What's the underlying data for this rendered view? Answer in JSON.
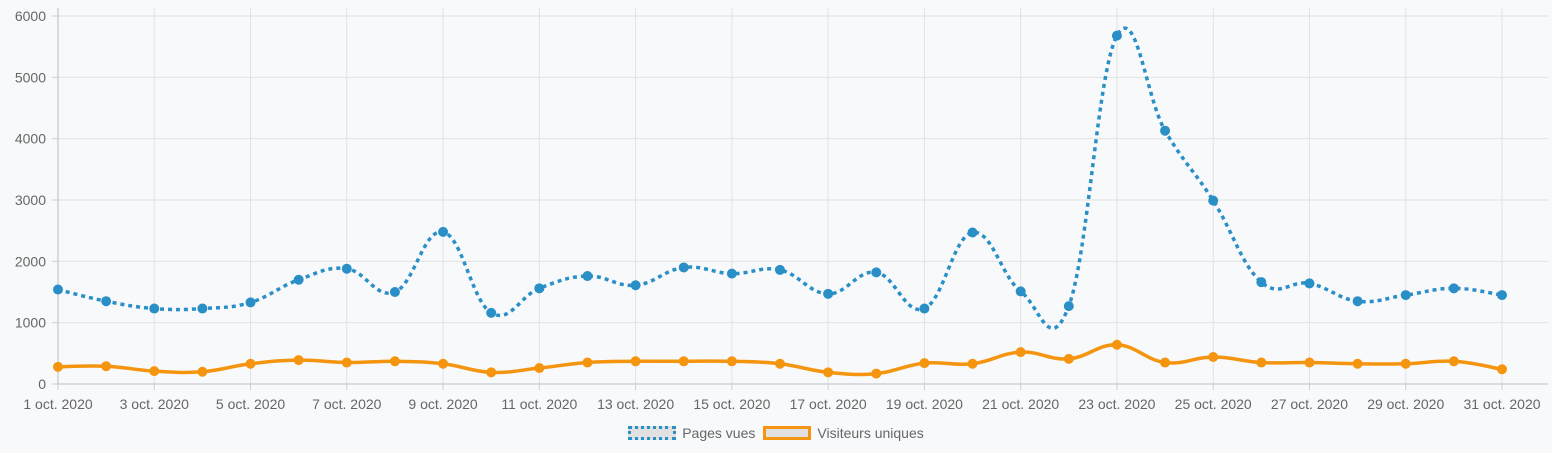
{
  "chart_data": {
    "type": "line",
    "title": "",
    "xlabel": "",
    "ylabel": "",
    "ylim": [
      0,
      6000
    ],
    "yticks": [
      0,
      1000,
      2000,
      3000,
      4000,
      5000,
      6000
    ],
    "grid": true,
    "legend_position": "bottom",
    "x": [
      "1 oct. 2020",
      "2 oct. 2020",
      "3 oct. 2020",
      "4 oct. 2020",
      "5 oct. 2020",
      "6 oct. 2020",
      "7 oct. 2020",
      "8 oct. 2020",
      "9 oct. 2020",
      "10 oct. 2020",
      "11 oct. 2020",
      "12 oct. 2020",
      "13 oct. 2020",
      "14 oct. 2020",
      "15 oct. 2020",
      "16 oct. 2020",
      "17 oct. 2020",
      "18 oct. 2020",
      "19 oct. 2020",
      "20 oct. 2020",
      "21 oct. 2020",
      "22 oct. 2020",
      "23 oct. 2020",
      "24 oct. 2020",
      "25 oct. 2020",
      "26 oct. 2020",
      "27 oct. 2020",
      "28 oct. 2020",
      "29 oct. 2020",
      "30 oct. 2020",
      "31 oct. 2020"
    ],
    "xtick_labels": [
      "1 oct. 2020",
      "3 oct. 2020",
      "5 oct. 2020",
      "7 oct. 2020",
      "9 oct. 2020",
      "11 oct. 2020",
      "13 oct. 2020",
      "15 oct. 2020",
      "17 oct. 2020",
      "19 oct. 2020",
      "21 oct. 2020",
      "23 oct. 2020",
      "25 oct. 2020",
      "27 oct. 2020",
      "29 oct. 2020",
      "31 oct. 2020"
    ],
    "series": [
      {
        "name": "Pages vues",
        "color": "#2a8fc7",
        "style": "dotted",
        "values": [
          1540,
          1350,
          1230,
          1230,
          1330,
          1700,
          1880,
          1500,
          2480,
          1160,
          1560,
          1760,
          1610,
          1900,
          1800,
          1860,
          1470,
          1820,
          1230,
          2470,
          1510,
          1270,
          5680,
          4130,
          2990,
          1660,
          1640,
          1350,
          1450,
          1560,
          1450
        ]
      },
      {
        "name": "Visiteurs uniques",
        "color": "#f5950f",
        "style": "solid",
        "values": [
          280,
          290,
          210,
          200,
          330,
          390,
          350,
          370,
          330,
          190,
          260,
          350,
          370,
          370,
          370,
          330,
          190,
          170,
          340,
          330,
          520,
          410,
          640,
          350,
          440,
          350,
          350,
          330,
          330,
          370,
          240
        ]
      }
    ]
  }
}
